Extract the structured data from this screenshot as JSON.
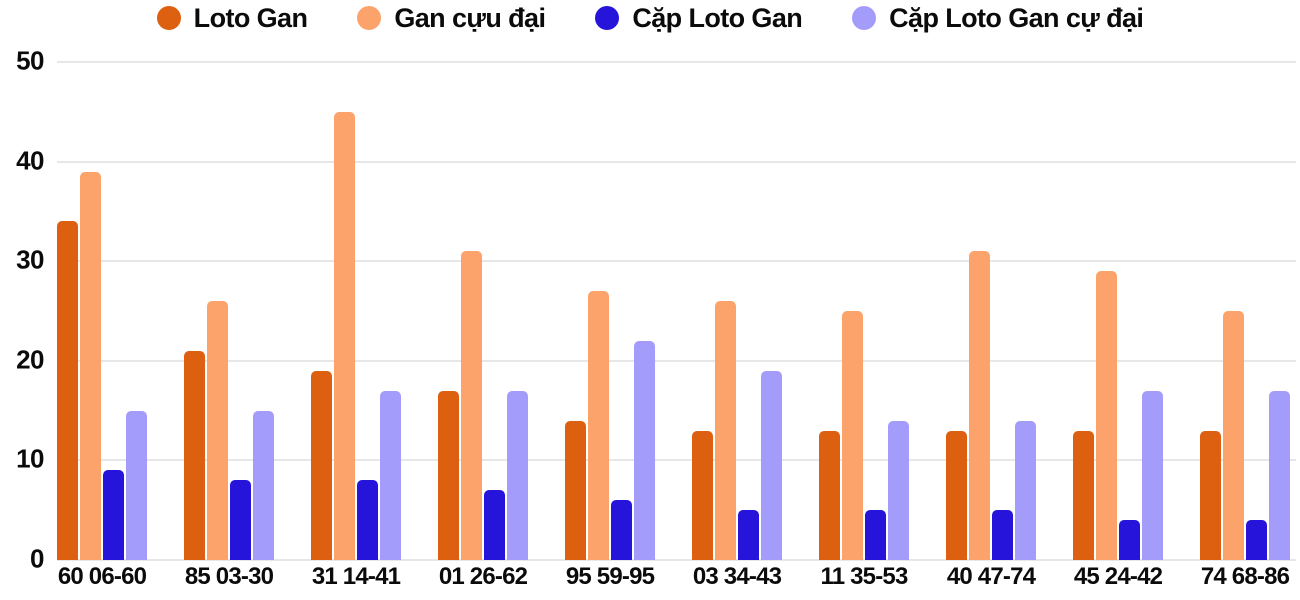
{
  "chart_data": {
    "type": "bar",
    "title": "",
    "xlabel": "",
    "ylabel": "",
    "categories": [
      "60 06-60",
      "85 03-30",
      "31 14-41",
      "01 26-62",
      "95 59-95",
      "03 34-43",
      "11 35-53",
      "40 47-74",
      "45 24-42",
      "74 68-86"
    ],
    "series": [
      {
        "name": "Loto Gan",
        "color": "#DD5F10",
        "values": [
          34,
          21,
          19,
          17,
          14,
          13,
          13,
          13,
          13,
          13
        ]
      },
      {
        "name": "Gan cựu đại",
        "color": "#FCA36B",
        "values": [
          39,
          26,
          45,
          31,
          27,
          26,
          25,
          31,
          29,
          25
        ]
      },
      {
        "name": "Cặp Loto Gan",
        "color": "#2614DB",
        "values": [
          9,
          8,
          8,
          7,
          6,
          5,
          5,
          5,
          4,
          4
        ]
      },
      {
        "name": "Cặp Loto Gan cự đại",
        "color": "#A49CFB",
        "values": [
          15,
          15,
          17,
          17,
          22,
          19,
          14,
          14,
          17,
          17
        ]
      }
    ],
    "ylim": [
      0,
      50
    ],
    "yticks": [
      0,
      10,
      20,
      30,
      40,
      50
    ],
    "grid": true,
    "legend_position": "top",
    "axis_text_color": "#0b0b0b",
    "gridline_color": "#e7e7e7",
    "background_color": "#ffffff"
  }
}
